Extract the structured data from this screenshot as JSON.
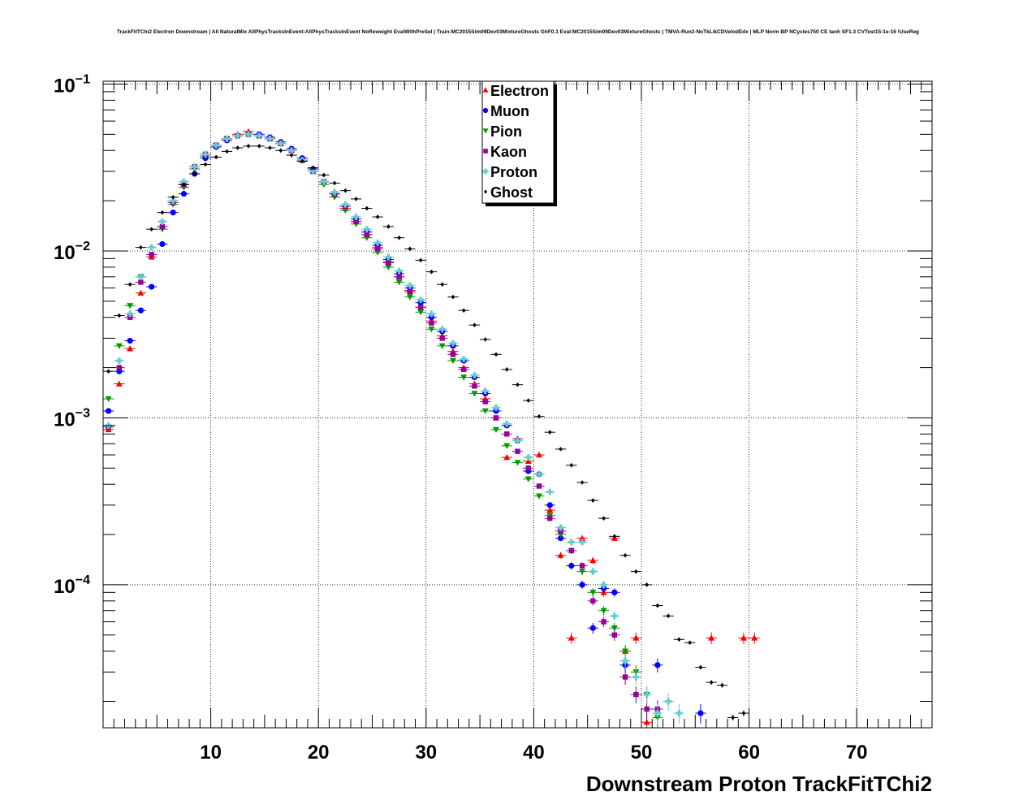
{
  "chart_data": {
    "type": "scatter",
    "title": "TrackFitTChi2 Electron Downstream | All NaturalMix AllPhysTracksInEvent:AllPhysTracksInEvent NoReweight EvalWithPreSel | Train:MC2015Sim09Dev03MixtureGhosts GhF0.1 Eval:MC2015Sim09Dev03MixtureGhosts | TMVA-Run2-NoTkLikCDVelodEdx | MLP Norm BP NCycles750 CE tanh SF1.3 CVTest15:1e-16 !UseReg",
    "xlabel": "Downstream Proton TrackFitTChi2",
    "ylabel": "",
    "xlim": [
      0,
      77
    ],
    "ylim": [
      1.39e-05,
      0.104
    ],
    "yscale": "log",
    "grid": true,
    "legend_placement": "top-center",
    "xticks": [
      10,
      20,
      30,
      40,
      50,
      60,
      70
    ],
    "xtick_labels": [
      "10",
      "20",
      "30",
      "40",
      "50",
      "60",
      "70"
    ],
    "yticks": [
      {
        "value": 0.1,
        "base": "10",
        "exp": "−1"
      },
      {
        "value": 0.01,
        "base": "10",
        "exp": "−2"
      },
      {
        "value": 0.001,
        "base": "10",
        "exp": "−3"
      },
      {
        "value": 0.0001,
        "base": "10",
        "exp": "−4"
      }
    ],
    "x": [
      0.5,
      1.5,
      2.5,
      3.5,
      4.5,
      5.5,
      6.5,
      7.5,
      8.5,
      9.5,
      10.5,
      11.5,
      12.5,
      13.5,
      14.5,
      15.5,
      16.5,
      17.5,
      18.5,
      19.5,
      20.5,
      21.5,
      22.5,
      23.5,
      24.5,
      25.5,
      26.5,
      27.5,
      28.5,
      29.5,
      30.5,
      31.5,
      32.5,
      33.5,
      34.5,
      35.5,
      36.5,
      37.5,
      38.5,
      39.5,
      40.5,
      41.5,
      42.5,
      43.5,
      44.5,
      45.5,
      46.5,
      47.5,
      48.5,
      49.5,
      50.5,
      51.5,
      52.5,
      53.5,
      54.5,
      55.5,
      56.5,
      57.5,
      58.5,
      59.5,
      60.5
    ],
    "series": [
      {
        "name": "Electron",
        "color": "#ff0000",
        "marker": "triangle-up",
        "values": [
          0.00085,
          0.0016,
          0.0026,
          0.0056,
          0.0092,
          0.014,
          0.02,
          0.025,
          0.032,
          0.038,
          0.043,
          0.047,
          0.05,
          0.052,
          0.049,
          0.047,
          0.044,
          0.04,
          0.035,
          0.03,
          0.026,
          0.022,
          0.018,
          0.015,
          0.0125,
          0.0105,
          0.0086,
          0.007,
          0.0058,
          0.0046,
          0.0038,
          0.0031,
          0.0025,
          0.002,
          0.0016,
          0.0013,
          0.001,
          0.00058,
          0.00075,
          0.00055,
          0.0006,
          0.00028,
          0.00015,
          4.8e-05,
          0.00019,
          0.00014,
          9e-05,
          0.00019,
          4e-05,
          4.8e-05,
          1.5e-05,
          null,
          null,
          null,
          null,
          null,
          4.8e-05,
          null,
          null,
          4.8e-05,
          4.8e-05
        ]
      },
      {
        "name": "Muon",
        "color": "#0000ff",
        "marker": "circle",
        "values": [
          0.0011,
          0.0019,
          0.0029,
          0.0044,
          0.0061,
          0.011,
          0.017,
          0.022,
          0.029,
          0.036,
          0.042,
          0.046,
          0.049,
          0.05,
          0.05,
          0.048,
          0.045,
          0.041,
          0.036,
          0.031,
          0.026,
          0.022,
          0.0185,
          0.0155,
          0.013,
          0.0108,
          0.0089,
          0.0073,
          0.006,
          0.0049,
          0.004,
          0.0033,
          0.0027,
          0.0022,
          0.00175,
          0.0014,
          0.0011,
          0.0009,
          0.00073,
          0.00048,
          0.00046,
          0.0003,
          0.00019,
          0.00013,
          0.0001,
          5.5e-05,
          9.5e-05,
          9e-05,
          3.3e-05,
          null,
          null,
          3.3e-05,
          null,
          null,
          null,
          1.7e-05,
          null,
          null,
          null,
          null,
          null
        ]
      },
      {
        "name": "Pion",
        "color": "#009900",
        "marker": "triangle-down",
        "values": [
          0.0013,
          0.0027,
          0.0047,
          0.007,
          0.0095,
          0.0135,
          0.019,
          0.024,
          0.031,
          0.037,
          0.043,
          0.047,
          0.049,
          0.05,
          0.049,
          0.047,
          0.044,
          0.04,
          0.035,
          0.03,
          0.025,
          0.021,
          0.0175,
          0.0145,
          0.012,
          0.0098,
          0.008,
          0.0065,
          0.0053,
          0.0043,
          0.0034,
          0.0027,
          0.0022,
          0.00175,
          0.0014,
          0.0011,
          0.00085,
          0.00068,
          0.00054,
          0.00043,
          0.00034,
          0.00026,
          0.0002,
          0.00016,
          0.00012,
          9e-05,
          7e-05,
          5.5e-05,
          4e-05,
          3e-05,
          2.2e-05,
          1.6e-05,
          null,
          null,
          null,
          null,
          null,
          null,
          null,
          null,
          null
        ]
      },
      {
        "name": "Kaon",
        "color": "#990099",
        "marker": "square",
        "values": [
          0.00088,
          0.002,
          0.004,
          0.0065,
          0.0095,
          0.014,
          0.0195,
          0.025,
          0.032,
          0.038,
          0.043,
          0.047,
          0.049,
          0.05,
          0.049,
          0.047,
          0.044,
          0.04,
          0.035,
          0.03,
          0.026,
          0.022,
          0.0185,
          0.015,
          0.0125,
          0.0103,
          0.0085,
          0.007,
          0.0057,
          0.0046,
          0.0037,
          0.003,
          0.0024,
          0.00195,
          0.00155,
          0.00125,
          0.001,
          0.0008,
          0.00063,
          0.0005,
          0.00039,
          0.00025,
          0.00021,
          0.00016,
          0.00013,
          8e-05,
          6e-05,
          5e-05,
          2.8e-05,
          2.2e-05,
          1.8e-05,
          1.8e-05,
          null,
          null,
          null,
          null,
          null,
          null,
          null,
          null,
          null
        ]
      },
      {
        "name": "Proton",
        "color": "#66cccc",
        "marker": "plus",
        "values": [
          0.0009,
          0.0022,
          0.0042,
          0.007,
          0.0105,
          0.015,
          0.02,
          0.026,
          0.032,
          0.038,
          0.043,
          0.047,
          0.049,
          0.05,
          0.049,
          0.047,
          0.044,
          0.04,
          0.035,
          0.03,
          0.026,
          0.0225,
          0.019,
          0.016,
          0.0135,
          0.0112,
          0.0092,
          0.0076,
          0.0062,
          0.0051,
          0.0042,
          0.0034,
          0.0028,
          0.00225,
          0.0018,
          0.00145,
          0.00115,
          0.00092,
          0.00073,
          0.00058,
          0.00046,
          0.00036,
          0.00022,
          0.00018,
          0.00018,
          0.00012,
          0.0001,
          6.5e-05,
          3.5e-05,
          2.8e-05,
          2.2e-05,
          1.7e-05,
          2e-05,
          1.7e-05,
          null,
          null,
          null,
          null,
          null,
          null,
          null
        ]
      },
      {
        "name": "Ghost",
        "color": "#000000",
        "marker": "diamond",
        "values": [
          0.0019,
          0.0041,
          0.0063,
          0.0105,
          0.0135,
          0.017,
          0.021,
          0.025,
          0.029,
          0.033,
          0.0365,
          0.0395,
          0.0415,
          0.0425,
          0.0425,
          0.0415,
          0.04,
          0.0375,
          0.0345,
          0.0315,
          0.0285,
          0.0255,
          0.023,
          0.0205,
          0.018,
          0.016,
          0.014,
          0.012,
          0.0103,
          0.0088,
          0.0075,
          0.0063,
          0.0053,
          0.0044,
          0.0036,
          0.00295,
          0.0024,
          0.00195,
          0.00158,
          0.00127,
          0.00102,
          0.00082,
          0.00065,
          0.00052,
          0.00041,
          0.00032,
          0.00025,
          0.000195,
          0.00015,
          0.00012,
          0.0001,
          7.5e-05,
          6.5e-05,
          4.7e-05,
          4.5e-05,
          3.2e-05,
          2.6e-05,
          2.5e-05,
          1.6e-05,
          1.7e-05,
          null
        ]
      }
    ]
  }
}
